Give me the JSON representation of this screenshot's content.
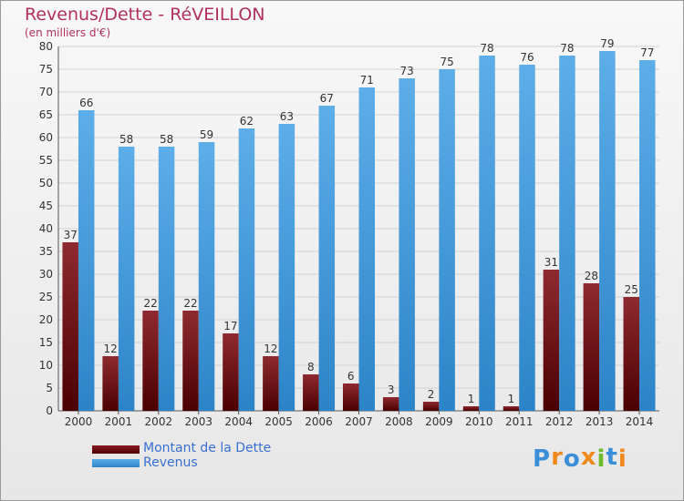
{
  "chart_data": {
    "type": "bar",
    "title": "Revenus/Dette - RéVEILLON",
    "subtitle": "(en milliers d'€)",
    "categories": [
      "2000",
      "2001",
      "2002",
      "2003",
      "2004",
      "2005",
      "2006",
      "2007",
      "2008",
      "2009",
      "2010",
      "2011",
      "2012",
      "2013",
      "2014"
    ],
    "series": [
      {
        "name": "Montant de la Dette",
        "color": "#6a0d12",
        "values": [
          37,
          12,
          22,
          22,
          17,
          12,
          8,
          6,
          3,
          2,
          1,
          1,
          31,
          28,
          25
        ]
      },
      {
        "name": "Revenus",
        "color": "#3d93d6",
        "values": [
          66,
          58,
          58,
          59,
          62,
          63,
          67,
          71,
          73,
          75,
          78,
          76,
          78,
          79,
          77
        ]
      }
    ],
    "ylim": [
      0,
      80
    ],
    "yticks": [
      0,
      5,
      10,
      15,
      20,
      25,
      30,
      35,
      40,
      45,
      50,
      55,
      60,
      65,
      70,
      75,
      80
    ],
    "grid": true,
    "legend_position": "bottom-left"
  },
  "logo": {
    "letters": [
      "P",
      "r",
      "o",
      "x",
      "i",
      "t",
      "i"
    ],
    "colors": [
      "#3a8fd8",
      "#f08a1c",
      "#3a8fd8",
      "#f08a1c",
      "#6dbb2d",
      "#3a8fd8",
      "#f08a1c"
    ]
  }
}
